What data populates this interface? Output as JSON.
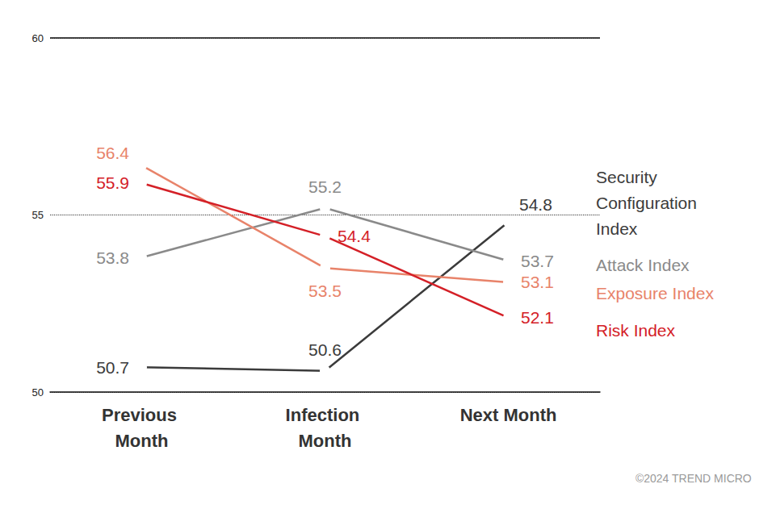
{
  "chart_data": {
    "type": "line",
    "categories": [
      "Previous Month",
      "Infection Month",
      "Next Month"
    ],
    "series": [
      {
        "name": "Security Configuration Index",
        "color": "#3b3b3b",
        "values": [
          50.7,
          50.6,
          54.8
        ]
      },
      {
        "name": "Attack Index",
        "color": "#8a8a8a",
        "values": [
          53.8,
          55.2,
          53.7
        ]
      },
      {
        "name": "Exposure Index",
        "color": "#e8836a",
        "values": [
          56.4,
          53.5,
          53.1
        ]
      },
      {
        "name": "Risk Index",
        "color": "#d42027",
        "values": [
          55.9,
          54.4,
          52.1
        ]
      }
    ],
    "ylim": [
      50,
      60
    ],
    "yticks": [
      50,
      55,
      60
    ],
    "grid": true,
    "data_labels": true,
    "marker": "hollow_circle",
    "footer": "©2024 TREND MICRO"
  }
}
